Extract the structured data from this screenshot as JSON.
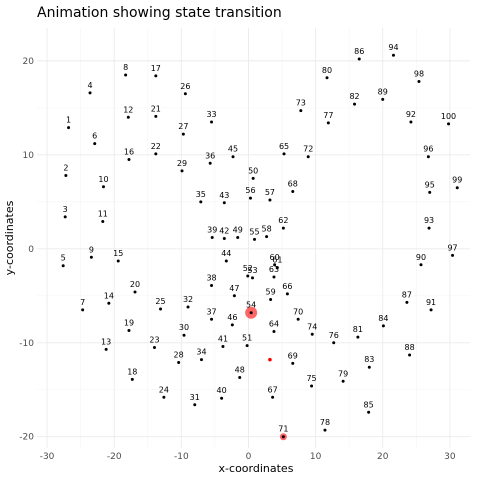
{
  "chart_data": {
    "type": "scatter",
    "title": "Animation showing state transition",
    "xlabel": "x-coordinates",
    "ylabel": "y-coordinates",
    "xlim": [
      -31.5,
      33
    ],
    "ylim": [
      -21.2,
      23.5
    ],
    "xticks": [
      -30,
      -20,
      -10,
      0,
      10,
      20,
      30
    ],
    "yticks": [
      -20,
      -10,
      0,
      10,
      20
    ],
    "grid": true,
    "legend": "none",
    "point_color": "#000000",
    "highlight_color": "#ff0000",
    "highlights": [
      {
        "label": "54",
        "x": 0.4,
        "y": -6.8,
        "size": "large"
      },
      {
        "label": "71",
        "x": 5.2,
        "y": -20.0,
        "size": "medium"
      },
      {
        "label": "",
        "x": 3.2,
        "y": -11.8,
        "size": "small"
      }
    ],
    "points": [
      {
        "label": "1",
        "x": -26.8,
        "y": 12.9
      },
      {
        "label": "2",
        "x": -27.2,
        "y": 7.8
      },
      {
        "label": "3",
        "x": -27.3,
        "y": 3.4
      },
      {
        "label": "4",
        "x": -23.6,
        "y": 16.6
      },
      {
        "label": "5",
        "x": -27.6,
        "y": -1.8
      },
      {
        "label": "6",
        "x": -22.9,
        "y": 11.2
      },
      {
        "label": "7",
        "x": -24.7,
        "y": -6.5
      },
      {
        "label": "8",
        "x": -18.3,
        "y": 18.5
      },
      {
        "label": "9",
        "x": -23.4,
        "y": -0.9
      },
      {
        "label": "10",
        "x": -21.6,
        "y": 6.6
      },
      {
        "label": "11",
        "x": -21.7,
        "y": 2.9
      },
      {
        "label": "12",
        "x": -17.9,
        "y": 14.0
      },
      {
        "label": "13",
        "x": -21.2,
        "y": -10.7
      },
      {
        "label": "14",
        "x": -20.8,
        "y": -5.8
      },
      {
        "label": "15",
        "x": -19.4,
        "y": -1.3
      },
      {
        "label": "16",
        "x": -17.8,
        "y": 9.5
      },
      {
        "label": "17",
        "x": -13.8,
        "y": 18.4
      },
      {
        "label": "18",
        "x": -17.3,
        "y": -13.9
      },
      {
        "label": "19",
        "x": -17.8,
        "y": -8.7
      },
      {
        "label": "20",
        "x": -16.9,
        "y": -4.6
      },
      {
        "label": "21",
        "x": -13.8,
        "y": 14.1
      },
      {
        "label": "22",
        "x": -13.8,
        "y": 10.1
      },
      {
        "label": "23",
        "x": -14.0,
        "y": -10.5
      },
      {
        "label": "24",
        "x": -12.6,
        "y": -15.8
      },
      {
        "label": "25",
        "x": -13.1,
        "y": -6.4
      },
      {
        "label": "26",
        "x": -9.4,
        "y": 16.5
      },
      {
        "label": "27",
        "x": -9.7,
        "y": 12.2
      },
      {
        "label": "28",
        "x": -10.4,
        "y": -12.1
      },
      {
        "label": "29",
        "x": -9.9,
        "y": 8.3
      },
      {
        "label": "30",
        "x": -9.6,
        "y": -9.2
      },
      {
        "label": "31",
        "x": -8.0,
        "y": -16.6
      },
      {
        "label": "32",
        "x": -9.0,
        "y": -6.2
      },
      {
        "label": "33",
        "x": -5.5,
        "y": 13.5
      },
      {
        "label": "34",
        "x": -7.0,
        "y": -11.8
      },
      {
        "label": "35",
        "x": -7.1,
        "y": 5.0
      },
      {
        "label": "36",
        "x": -5.7,
        "y": 9.1
      },
      {
        "label": "37",
        "x": -5.5,
        "y": -7.5
      },
      {
        "label": "38",
        "x": -5.5,
        "y": -3.9
      },
      {
        "label": "39",
        "x": -5.4,
        "y": 1.2
      },
      {
        "label": "40",
        "x": -4.0,
        "y": -15.9
      },
      {
        "label": "41",
        "x": -3.8,
        "y": -10.4
      },
      {
        "label": "42",
        "x": -3.6,
        "y": 1.1
      },
      {
        "label": "43",
        "x": -3.6,
        "y": 4.9
      },
      {
        "label": "44",
        "x": -3.3,
        "y": -1.3
      },
      {
        "label": "45",
        "x": -2.3,
        "y": 9.8
      },
      {
        "label": "46",
        "x": -2.4,
        "y": -8.1
      },
      {
        "label": "47",
        "x": -2.1,
        "y": -5.0
      },
      {
        "label": "48",
        "x": -1.3,
        "y": -13.7
      },
      {
        "label": "49",
        "x": -1.6,
        "y": 1.2
      },
      {
        "label": "50",
        "x": 0.7,
        "y": 7.5
      },
      {
        "label": "51",
        "x": -0.2,
        "y": -10.3
      },
      {
        "label": "52",
        "x": -0.1,
        "y": -2.9
      },
      {
        "label": "53",
        "x": 0.6,
        "y": -3.1
      },
      {
        "label": "55",
        "x": 0.9,
        "y": 1.0
      },
      {
        "label": "56",
        "x": 0.3,
        "y": 5.4
      },
      {
        "label": "57",
        "x": 3.2,
        "y": 5.2
      },
      {
        "label": "58",
        "x": 2.7,
        "y": 1.3
      },
      {
        "label": "59",
        "x": 3.3,
        "y": -5.4
      },
      {
        "label": "60",
        "x": 3.9,
        "y": -1.7
      },
      {
        "label": "61",
        "x": 4.3,
        "y": -2.0
      },
      {
        "label": "62",
        "x": 5.2,
        "y": 2.2
      },
      {
        "label": "63",
        "x": 3.8,
        "y": -3.0
      },
      {
        "label": "64",
        "x": 3.8,
        "y": -8.8
      },
      {
        "label": "65",
        "x": 5.3,
        "y": 10.1
      },
      {
        "label": "66",
        "x": 5.8,
        "y": -4.8
      },
      {
        "label": "67",
        "x": 3.6,
        "y": -15.8
      },
      {
        "label": "68",
        "x": 6.6,
        "y": 6.1
      },
      {
        "label": "69",
        "x": 6.6,
        "y": -12.2
      },
      {
        "label": "70",
        "x": 7.4,
        "y": -7.5
      },
      {
        "label": "72",
        "x": 8.9,
        "y": 9.8
      },
      {
        "label": "73",
        "x": 7.8,
        "y": 14.7
      },
      {
        "label": "74",
        "x": 9.5,
        "y": -9.1
      },
      {
        "label": "75",
        "x": 9.4,
        "y": -14.6
      },
      {
        "label": "76",
        "x": 12.7,
        "y": -10.0
      },
      {
        "label": "77",
        "x": 11.9,
        "y": 13.4
      },
      {
        "label": "78",
        "x": 11.4,
        "y": -19.3
      },
      {
        "label": "79",
        "x": 14.1,
        "y": -14.1
      },
      {
        "label": "80",
        "x": 11.7,
        "y": 18.2
      },
      {
        "label": "81",
        "x": 16.3,
        "y": -9.4
      },
      {
        "label": "82",
        "x": 15.8,
        "y": 15.4
      },
      {
        "label": "83",
        "x": 18.0,
        "y": -12.6
      },
      {
        "label": "84",
        "x": 20.1,
        "y": -8.2
      },
      {
        "label": "85",
        "x": 17.9,
        "y": -17.4
      },
      {
        "label": "86",
        "x": 16.5,
        "y": 20.2
      },
      {
        "label": "87",
        "x": 23.6,
        "y": -5.7
      },
      {
        "label": "88",
        "x": 24.0,
        "y": -11.3
      },
      {
        "label": "89",
        "x": 20.0,
        "y": 15.9
      },
      {
        "label": "90",
        "x": 25.7,
        "y": -1.7
      },
      {
        "label": "91",
        "x": 27.2,
        "y": -6.5
      },
      {
        "label": "92",
        "x": 24.2,
        "y": 13.5
      },
      {
        "label": "93",
        "x": 26.9,
        "y": 2.2
      },
      {
        "label": "94",
        "x": 21.6,
        "y": 20.6
      },
      {
        "label": "95",
        "x": 27.0,
        "y": 6.0
      },
      {
        "label": "96",
        "x": 26.8,
        "y": 9.8
      },
      {
        "label": "97",
        "x": 30.4,
        "y": -0.7
      },
      {
        "label": "98",
        "x": 25.4,
        "y": 17.8
      },
      {
        "label": "99",
        "x": 31.1,
        "y": 6.5
      },
      {
        "label": "100",
        "x": 29.8,
        "y": 13.3
      }
    ]
  }
}
